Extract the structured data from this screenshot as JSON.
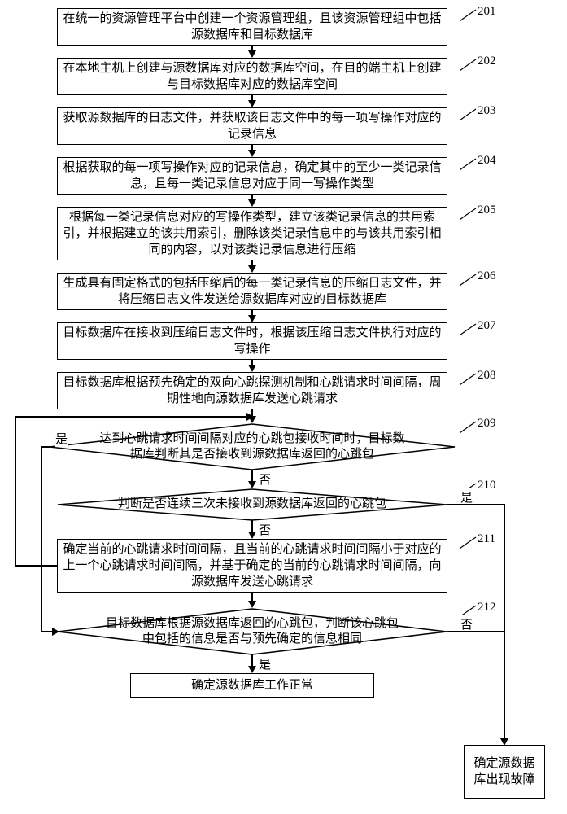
{
  "flowchart": {
    "type": "flowchart",
    "background_color": "#ffffff",
    "stroke_color": "#000000",
    "font_family": "SimSun",
    "font_size_pt": 11,
    "nodes": {
      "s201": {
        "num": "201",
        "text": "在统一的资源管理平台中创建一个资源管理组，且该资源管理组中包括源数据库和目标数据库"
      },
      "s202": {
        "num": "202",
        "text": "在本地主机上创建与源数据库对应的数据库空间，在目的端主机上创建与目标数据库对应的数据库空间"
      },
      "s203": {
        "num": "203",
        "text": "获取源数据库的日志文件，并获取该日志文件中的每一项写操作对应的记录信息"
      },
      "s204": {
        "num": "204",
        "text": "根据获取的每一项写操作对应的记录信息，确定其中的至少一类记录信息，且每一类记录信息对应于同一写操作类型"
      },
      "s205": {
        "num": "205",
        "text": "根据每一类记录信息对应的写操作类型，建立该类记录信息的共用索引，并根据建立的该共用索引，删除该类记录信息中的与该共用索引相同的内容，以对该类记录信息进行压缩"
      },
      "s206": {
        "num": "206",
        "text": "生成具有固定格式的包括压缩后的每一类记录信息的压缩日志文件，并将压缩日志文件发送给源数据库对应的目标数据库"
      },
      "s207": {
        "num": "207",
        "text": "目标数据库在接收到压缩日志文件时，根据该压缩日志文件执行对应的写操作"
      },
      "s208": {
        "num": "208",
        "text": "目标数据库根据预先确定的双向心跳探测机制和心跳请求时间间隔，周期性地向源数据库发送心跳请求"
      },
      "s209": {
        "num": "209",
        "text": "达到心跳请求时间间隔对应的心跳包接收时间时，目标数据库判断其是否接收到源数据库返回的心跳包"
      },
      "s210": {
        "num": "210",
        "text": "判断是否连续三次未接收到源数据库返回的心跳包"
      },
      "s211": {
        "num": "211",
        "text": "确定当前的心跳请求时间间隔，且当前的心跳请求时间间隔小于对应的上一个心跳请求时间间隔，并基于确定的当前的心跳请求时间间隔，向源数据库发送心跳请求"
      },
      "s212": {
        "num": "212",
        "text": "目标数据库根据源数据库返回的心跳包，判断该心跳包中包括的信息是否与预先确定的信息相同"
      },
      "normal": {
        "text": "确定源数据库工作正常"
      },
      "fault": {
        "text": "确定源数据库出现故障"
      }
    },
    "edge_labels": {
      "yes": "是",
      "no": "否"
    }
  }
}
